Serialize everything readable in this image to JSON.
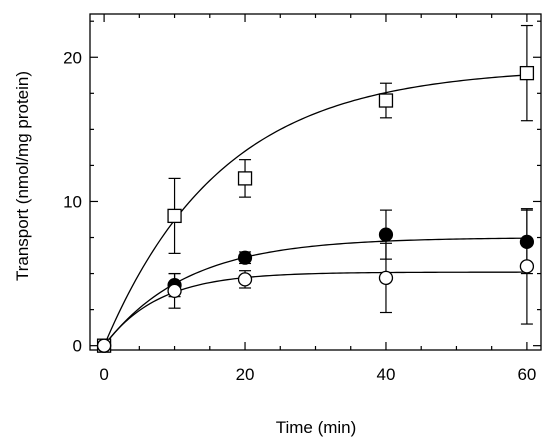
{
  "chart_data": {
    "type": "scatter",
    "title": "",
    "xlabel": "Time (min)",
    "ylabel": "Transport (nmol/mg protein)",
    "xlim": [
      -2,
      62
    ],
    "ylim": [
      -0.3,
      23
    ],
    "x_ticks": [
      0,
      20,
      40,
      60
    ],
    "y_ticks": [
      0,
      10,
      20
    ],
    "x_tick_labels": [
      "0",
      "20",
      "40",
      "60"
    ],
    "y_tick_labels": [
      "0",
      "10",
      "20"
    ],
    "grid": false,
    "legend": "none",
    "series": [
      {
        "marker": "open-square",
        "x": [
          0,
          10,
          20,
          40,
          60
        ],
        "y": [
          0,
          9.0,
          11.6,
          17.0,
          18.9
        ],
        "err": [
          0,
          2.6,
          1.3,
          1.2,
          3.3
        ],
        "fit": {
          "model": "first-order",
          "ymax": 19.3,
          "k": 0.06
        }
      },
      {
        "marker": "filled-circle",
        "x": [
          0,
          10,
          20,
          40,
          60
        ],
        "y": [
          0,
          4.2,
          6.1,
          7.7,
          7.2
        ],
        "err": [
          0,
          0.8,
          0.4,
          1.7,
          2.2
        ],
        "fit": {
          "model": "first-order",
          "ymax": 7.5,
          "k": 0.085
        }
      },
      {
        "marker": "open-circle",
        "x": [
          0,
          10,
          20,
          40,
          60
        ],
        "y": [
          0,
          3.8,
          4.6,
          4.7,
          5.5
        ],
        "err": [
          0,
          1.2,
          0.6,
          2.4,
          4.0
        ],
        "fit": {
          "model": "first-order",
          "ymax": 5.1,
          "k": 0.13
        }
      }
    ]
  }
}
